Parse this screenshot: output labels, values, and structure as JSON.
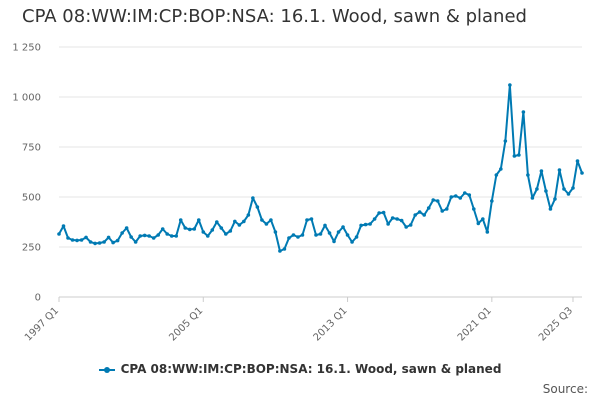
{
  "chart_data": {
    "type": "line",
    "title": "CPA 08:WW:IM:CP:BOP:NSA: 16.1. Wood, sawn & planed",
    "series": [
      {
        "name": "CPA 08:WW:IM:CP:BOP:NSA: 16.1. Wood, sawn & planed",
        "color": "#007ab3",
        "start": "1997 Q1",
        "frequency": "quarterly",
        "values": [
          315,
          355,
          295,
          285,
          283,
          285,
          298,
          275,
          268,
          270,
          275,
          298,
          272,
          282,
          320,
          345,
          300,
          275,
          305,
          308,
          305,
          295,
          310,
          340,
          315,
          305,
          305,
          385,
          345,
          338,
          340,
          385,
          325,
          305,
          335,
          375,
          345,
          315,
          330,
          378,
          360,
          378,
          410,
          495,
          450,
          385,
          365,
          385,
          325,
          230,
          240,
          295,
          310,
          300,
          310,
          385,
          390,
          310,
          315,
          358,
          320,
          278,
          325,
          350,
          310,
          275,
          300,
          358,
          362,
          365,
          390,
          420,
          422,
          365,
          395,
          390,
          382,
          350,
          360,
          410,
          425,
          410,
          445,
          485,
          480,
          430,
          440,
          500,
          505,
          495,
          520,
          510,
          440,
          368,
          390,
          325,
          480,
          610,
          640,
          780,
          1060,
          705,
          710,
          925,
          610,
          495,
          540,
          630,
          530,
          440,
          490,
          635,
          540,
          515,
          545,
          680,
          620
        ]
      }
    ],
    "x_ticks": [
      "1997 Q1",
      "2005 Q1",
      "2013 Q1",
      "2021 Q1",
      "2025 Q3"
    ],
    "y_ticks": [
      "0",
      "250",
      "500",
      "750",
      "1 000",
      "1 250"
    ],
    "ylim": [
      0,
      1250
    ],
    "grid": true,
    "legend_position": "bottom"
  },
  "source_label": "Source:"
}
